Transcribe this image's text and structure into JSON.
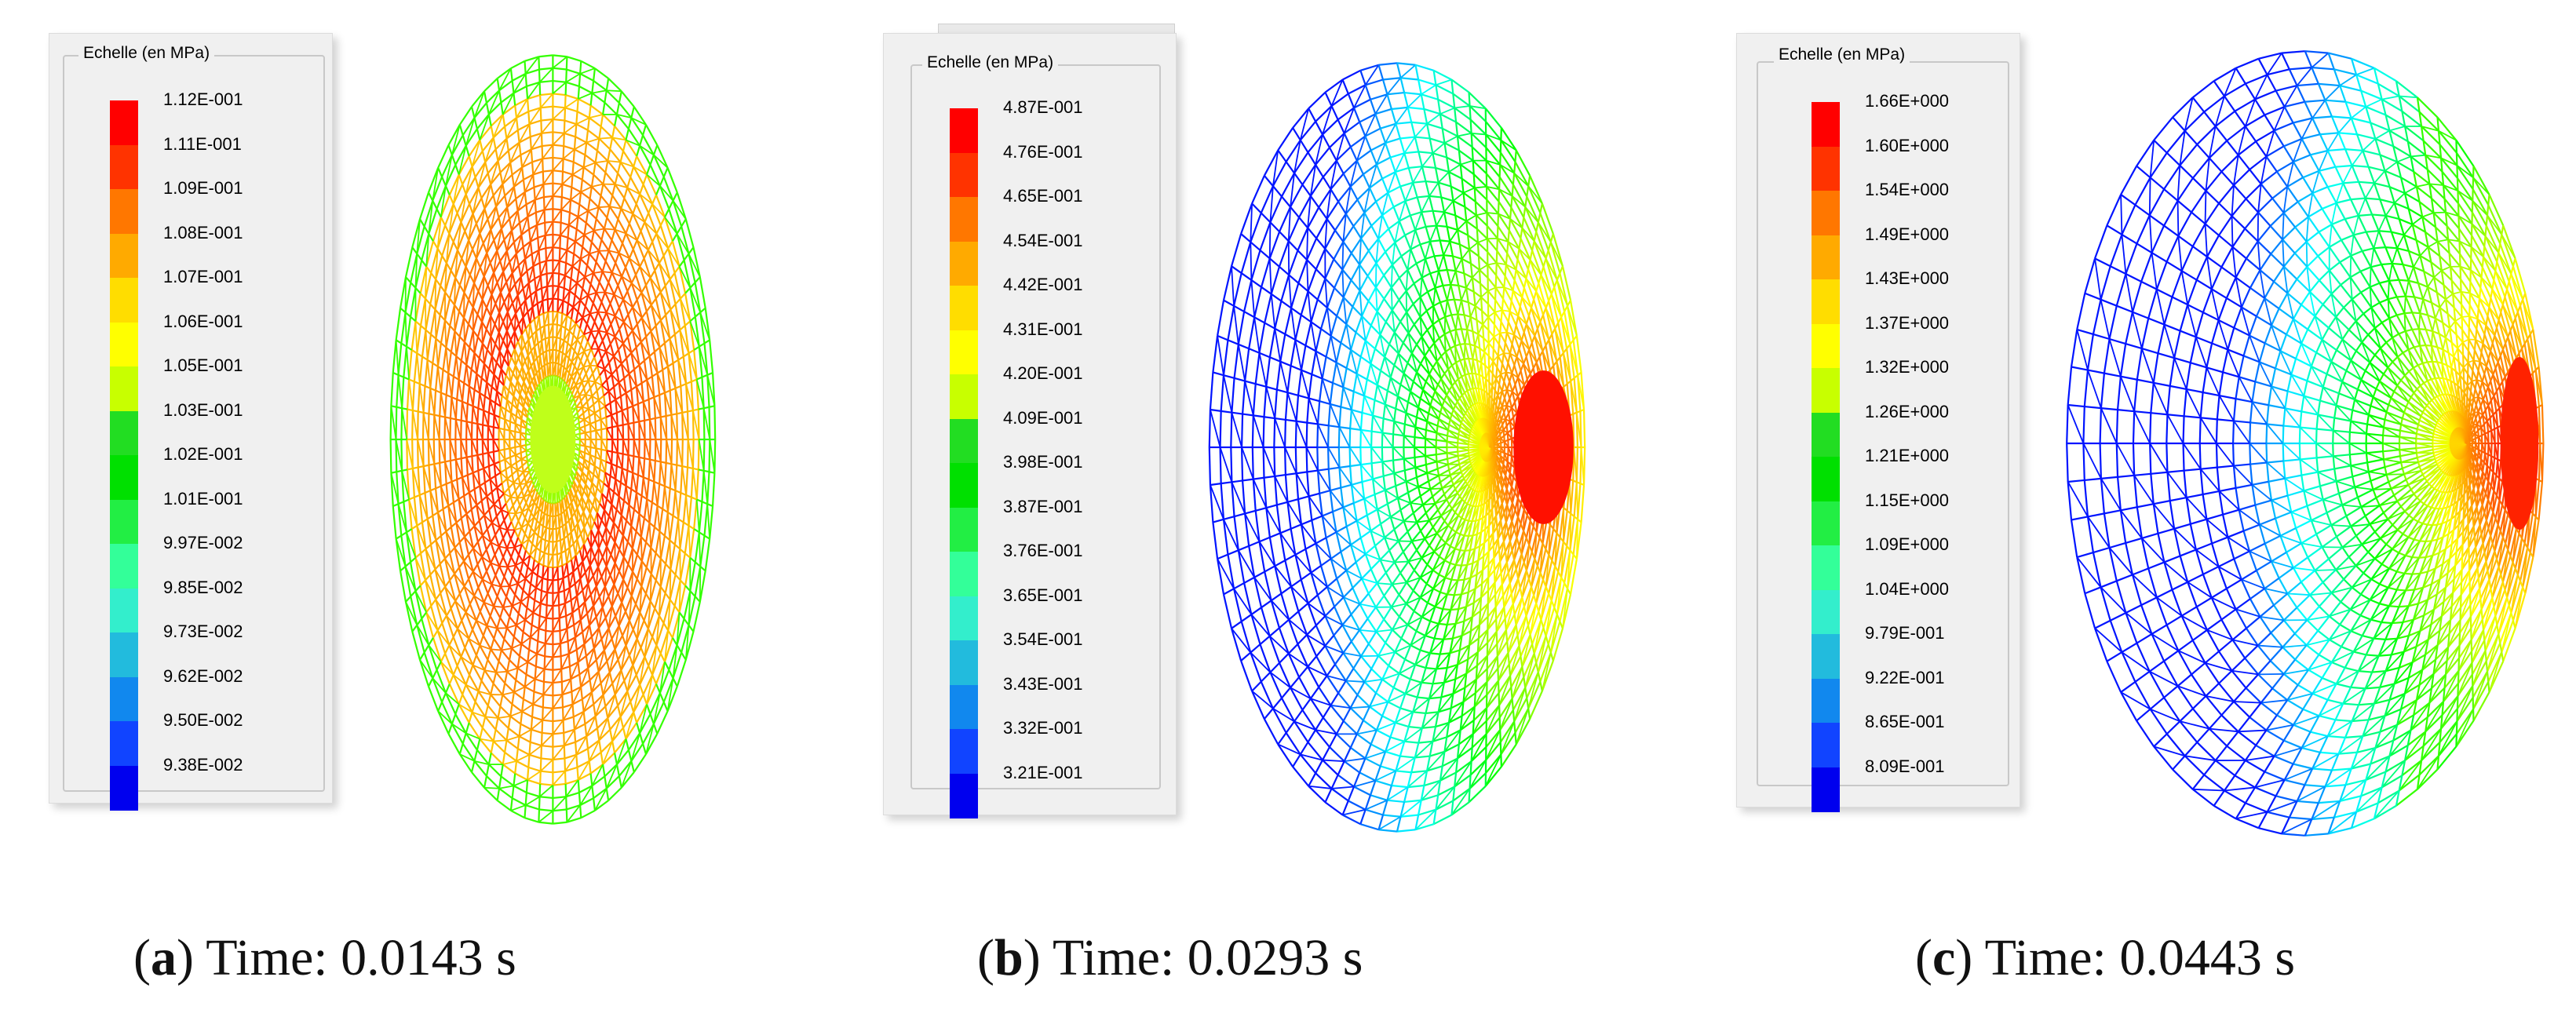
{
  "panels": [
    {
      "legend_title": "Echelle (en MPa)",
      "scale": [
        "1.12E-001",
        "1.11E-001",
        "1.09E-001",
        "1.08E-001",
        "1.07E-001",
        "1.06E-001",
        "1.05E-001",
        "1.03E-001",
        "1.02E-001",
        "1.01E-001",
        "9.97E-002",
        "9.85E-002",
        "9.73E-002",
        "9.62E-002",
        "9.50E-002",
        "9.38E-002"
      ],
      "caption_letter": "a",
      "caption_text": "Time: 0.0143 s"
    },
    {
      "legend_title": "Echelle (en MPa)",
      "scale": [
        "4.87E-001",
        "4.76E-001",
        "4.65E-001",
        "4.54E-001",
        "4.42E-001",
        "4.31E-001",
        "4.20E-001",
        "4.09E-001",
        "3.98E-001",
        "3.87E-001",
        "3.76E-001",
        "3.65E-001",
        "3.54E-001",
        "3.43E-001",
        "3.32E-001",
        "3.21E-001"
      ],
      "caption_letter": "b",
      "caption_text": "Time: 0.0293 s"
    },
    {
      "legend_title": "Echelle (en MPa)",
      "scale": [
        "1.66E+000",
        "1.60E+000",
        "1.54E+000",
        "1.49E+000",
        "1.43E+000",
        "1.37E+000",
        "1.32E+000",
        "1.26E+000",
        "1.21E+000",
        "1.15E+000",
        "1.09E+000",
        "1.04E+000",
        "9.79E-001",
        "9.22E-001",
        "8.65E-001",
        "8.09E-001"
      ],
      "caption_letter": "c",
      "caption_text": "Time: 0.0443 s"
    }
  ],
  "colors": {
    "scale_bands": [
      "#ff0000",
      "#ff3300",
      "#ff7700",
      "#ffaa00",
      "#ffdd00",
      "#ffff00",
      "#c8ff00",
      "#22dd22",
      "#00e000",
      "#22ee44",
      "#33ff99",
      "#33eecc",
      "#22bbdd",
      "#1188ee",
      "#1144ff",
      "#0000ee"
    ]
  }
}
